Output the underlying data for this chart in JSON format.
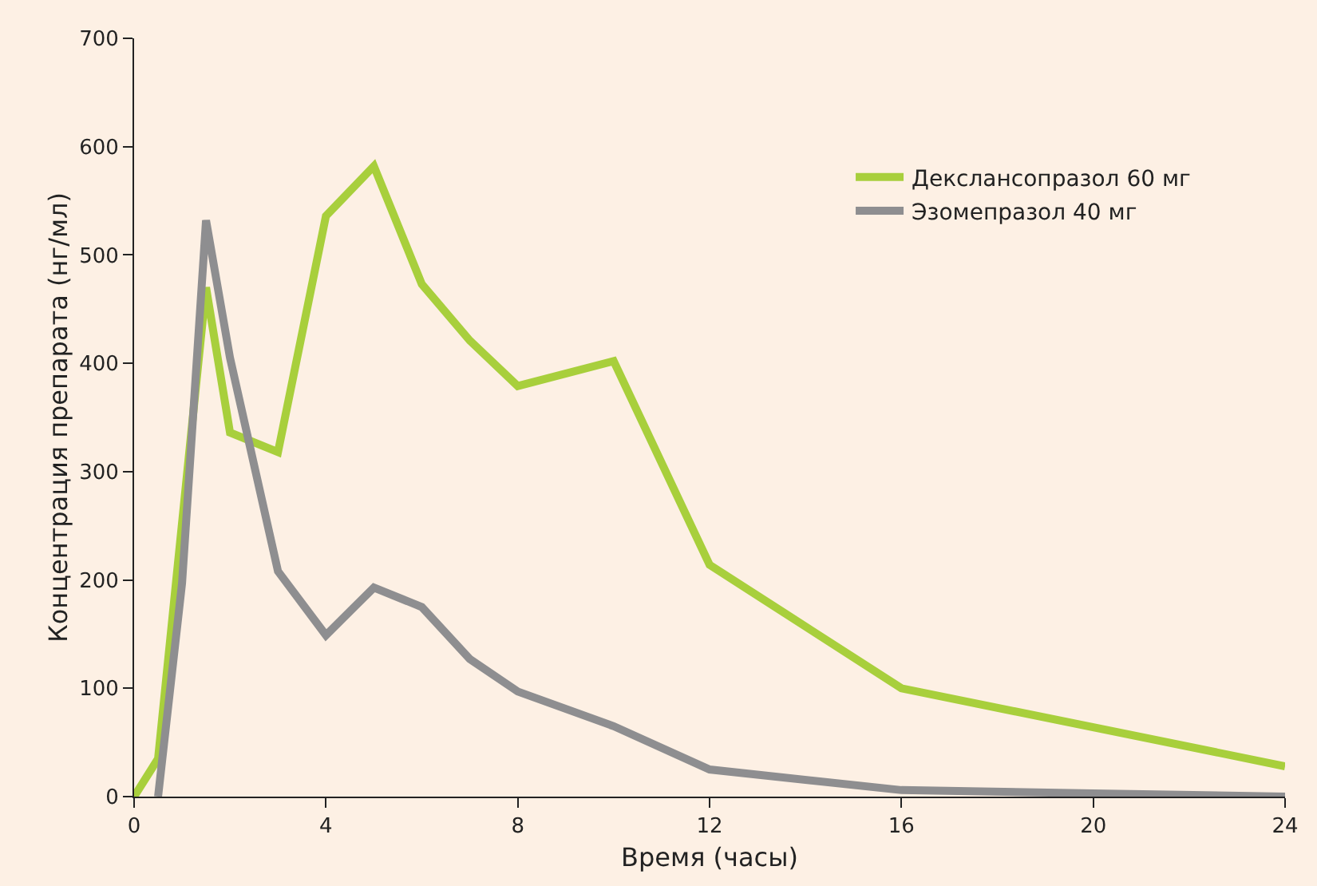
{
  "chart_data": {
    "type": "line",
    "xlabel": "Время (часы)",
    "ylabel": "Концентрация препарата (нг/мл)",
    "xlim": [
      0,
      24
    ],
    "xticks": [
      0,
      4,
      8,
      12,
      16,
      20,
      24
    ],
    "ylim": [
      0,
      700
    ],
    "yticks": [
      0,
      100,
      200,
      300,
      400,
      500,
      600,
      700
    ],
    "grid": false,
    "legend": "top right",
    "marker": "none",
    "line_style": "solid",
    "series": [
      {
        "name": "Декслансопразол 60 мг",
        "color": "#a8cf3c",
        "x": [
          0,
          0.5,
          1.5,
          2,
          3,
          4,
          5,
          6,
          7,
          8,
          10,
          12,
          16,
          24
        ],
        "values": [
          0,
          35,
          470,
          336,
          318,
          536,
          582,
          473,
          421,
          379,
          402,
          214,
          100,
          28
        ]
      },
      {
        "name": "Эзомепразол 40 мг",
        "color": "#8e8e90",
        "x": [
          0.5,
          1,
          1.5,
          2,
          3,
          4,
          5,
          6,
          7,
          8,
          10,
          12,
          16,
          20,
          24
        ],
        "values": [
          0,
          197,
          532,
          405,
          208,
          149,
          193,
          175,
          127,
          97,
          65,
          25,
          6,
          3,
          0
        ]
      }
    ]
  }
}
